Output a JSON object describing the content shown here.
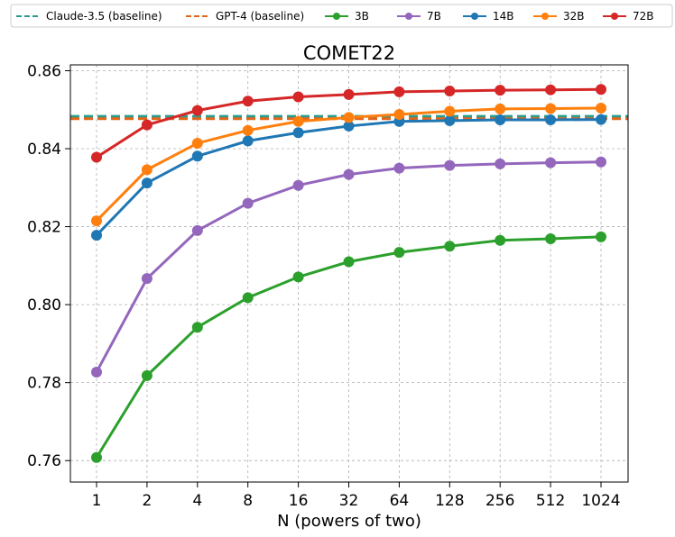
{
  "chart_data": {
    "type": "line",
    "title": "COMET22",
    "xlabel": "N (powers of two)",
    "ylabel": "",
    "categories": [
      "1",
      "2",
      "4",
      "8",
      "16",
      "32",
      "64",
      "128",
      "256",
      "512",
      "1024"
    ],
    "ylim": [
      0.7545,
      0.8615
    ],
    "yticks": [
      0.76,
      0.78,
      0.8,
      0.82,
      0.84,
      0.86
    ],
    "ytick_labels": [
      "0.76",
      "0.78",
      "0.80",
      "0.82",
      "0.84",
      "0.86"
    ],
    "grid": true,
    "legend_position": "top",
    "baselines": [
      {
        "name": "Claude-3.5 (baseline)",
        "value": 0.8483,
        "color": "#2a9d8f",
        "style": "dashed"
      },
      {
        "name": "GPT-4 (baseline)",
        "value": 0.8477,
        "color": "#e0661b",
        "style": "dashed"
      }
    ],
    "series": [
      {
        "name": "3B",
        "color": "#2ca02c",
        "values": [
          0.7608,
          0.7818,
          0.7942,
          0.8018,
          0.8071,
          0.811,
          0.8134,
          0.815,
          0.8165,
          0.8169,
          0.8174
        ]
      },
      {
        "name": "7B",
        "color": "#9467bd",
        "values": [
          0.7827,
          0.8067,
          0.819,
          0.826,
          0.8306,
          0.8334,
          0.835,
          0.8357,
          0.8361,
          0.8364,
          0.8366
        ]
      },
      {
        "name": "14B",
        "color": "#1f77b4",
        "values": [
          0.8178,
          0.8312,
          0.8381,
          0.842,
          0.8441,
          0.8458,
          0.847,
          0.8472,
          0.8474,
          0.8474,
          0.8475
        ]
      },
      {
        "name": "32B",
        "color": "#ff7f0e",
        "values": [
          0.8215,
          0.8346,
          0.8414,
          0.8447,
          0.847,
          0.848,
          0.8488,
          0.8496,
          0.8502,
          0.8503,
          0.8504
        ]
      },
      {
        "name": "72B",
        "color": "#d62728",
        "values": [
          0.8378,
          0.8461,
          0.8498,
          0.8522,
          0.8533,
          0.8539,
          0.8546,
          0.8548,
          0.855,
          0.8551,
          0.8552
        ]
      }
    ]
  }
}
